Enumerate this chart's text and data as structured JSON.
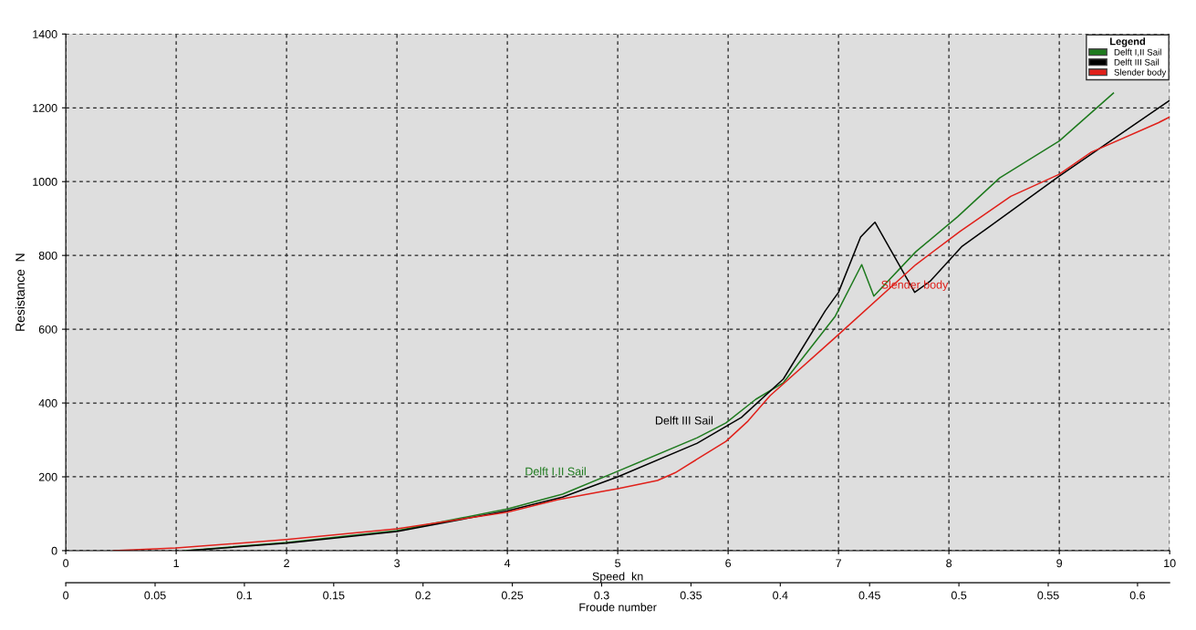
{
  "chart_data": {
    "type": "line",
    "xlabel": "Speed  kn",
    "ylabel": "Resistance  N",
    "x2label": "Froude number",
    "legend_title": "Legend",
    "legend": "top right",
    "grid": true,
    "line_style": "solid",
    "marker": "none",
    "xlim": [
      0,
      10
    ],
    "xticks": [
      0,
      1,
      2,
      3,
      4,
      5,
      6,
      7,
      8,
      9,
      10
    ],
    "ylim": [
      0,
      1400
    ],
    "yticks": [
      0,
      200,
      400,
      600,
      800,
      1000,
      1200,
      1400
    ],
    "x2lim": [
      0,
      0.618
    ],
    "x2ticks": [
      0,
      0.05,
      0.1,
      0.15,
      0.2,
      0.25,
      0.3,
      0.35,
      0.4,
      0.45,
      0.5,
      0.55,
      0.6
    ],
    "series": [
      {
        "name": "Delft I,II Sail",
        "color": "#1e7a1e",
        "x": [
          1.08,
          2,
          3,
          4,
          4.5,
          5,
          5.72,
          5.98,
          6.25,
          6.5,
          6.97,
          7.21,
          7.32,
          7.7,
          8.08,
          8.46,
          9,
          9.49
        ],
        "values": [
          0,
          22,
          54,
          113,
          153,
          215,
          306,
          346,
          410,
          455,
          635,
          775,
          690,
          810,
          905,
          1010,
          1110,
          1240
        ]
      },
      {
        "name": "Delft III Sail",
        "color": "#000000",
        "x": [
          1.1,
          2,
          3,
          4,
          4.5,
          5,
          5.72,
          6.12,
          6.5,
          6.88,
          7.0,
          7.2,
          7.33,
          7.69,
          7.83,
          8.12,
          8.33,
          9,
          9.9,
          10
        ],
        "values": [
          0,
          20,
          52,
          108,
          145,
          200,
          291,
          361,
          465,
          650,
          700,
          850,
          890,
          700,
          730,
          825,
          870,
          1015,
          1200,
          1220
        ]
      },
      {
        "name": "Slender body",
        "color": "#e0201a",
        "x": [
          0.43,
          1,
          2,
          3,
          4,
          4.46,
          4.85,
          5.0,
          5.36,
          5.52,
          5.98,
          6.18,
          6.38,
          6.98,
          7.7,
          8.1,
          8.56,
          9,
          9.29,
          9.9,
          10
        ],
        "values": [
          0,
          7,
          30,
          59,
          104,
          138,
          160,
          168,
          190,
          211,
          296,
          351,
          420,
          580,
          775,
          865,
          960,
          1020,
          1080,
          1160,
          1175
        ]
      }
    ],
    "annotations": [
      {
        "text": "Delft I,II Sail",
        "x": 4.75,
        "y": 184
      },
      {
        "text": "Delft III Sail",
        "x": 5.9,
        "y": 322
      },
      {
        "text": "Slender body",
        "x": 7.35,
        "y": 690
      }
    ]
  }
}
